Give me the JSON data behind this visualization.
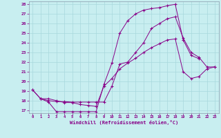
{
  "title": "",
  "xlabel": "Windchill (Refroidissement éolien,°C)",
  "bg_color": "#c8eef0",
  "line_color": "#880088",
  "grid_color": "#a8d8dc",
  "xlim": [
    -0.5,
    23.5
  ],
  "ylim": [
    16.7,
    28.3
  ],
  "yticks": [
    17,
    18,
    19,
    20,
    21,
    22,
    23,
    24,
    25,
    26,
    27,
    28
  ],
  "xticks": [
    0,
    1,
    2,
    3,
    4,
    5,
    6,
    7,
    8,
    9,
    10,
    11,
    12,
    13,
    14,
    15,
    16,
    17,
    18,
    19,
    20,
    21,
    22,
    23
  ],
  "line1_x": [
    0,
    1,
    2,
    3,
    4,
    5,
    6,
    7,
    8,
    9,
    10,
    11,
    12,
    13,
    14,
    15,
    16,
    17,
    18,
    19,
    20,
    21,
    22,
    23
  ],
  "line1_y": [
    19.1,
    18.2,
    17.85,
    16.85,
    16.85,
    16.85,
    16.85,
    16.85,
    16.85,
    19.7,
    21.9,
    25.0,
    26.3,
    27.0,
    27.4,
    27.55,
    27.65,
    27.85,
    28.0,
    24.3,
    22.7,
    22.35,
    null,
    null
  ],
  "line2_x": [
    1,
    2,
    3,
    4,
    5,
    6,
    7,
    8,
    9,
    10,
    11,
    12,
    13,
    14,
    15,
    16,
    17,
    18,
    19,
    20,
    21,
    22,
    23
  ],
  "line2_y": [
    18.2,
    18.0,
    17.9,
    17.9,
    17.85,
    17.85,
    17.85,
    17.85,
    17.85,
    19.5,
    21.8,
    22.0,
    23.0,
    24.0,
    25.5,
    26.0,
    26.5,
    26.7,
    24.5,
    23.0,
    22.5,
    21.5,
    21.5
  ],
  "line3_x": [
    0,
    1,
    2,
    3,
    4,
    5,
    6,
    7,
    8,
    9,
    10,
    11,
    12,
    13,
    14,
    15,
    16,
    17,
    18,
    19,
    20,
    21,
    22,
    23
  ],
  "line3_y": [
    19.1,
    18.2,
    18.2,
    18.0,
    17.8,
    17.8,
    17.6,
    17.5,
    17.4,
    19.5,
    20.3,
    21.3,
    21.9,
    22.4,
    23.0,
    23.5,
    23.9,
    24.3,
    24.4,
    21.0,
    20.3,
    20.5,
    21.3,
    21.5
  ]
}
